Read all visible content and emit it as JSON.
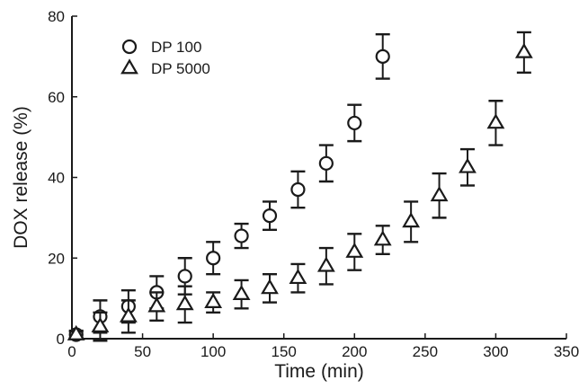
{
  "chart_data": {
    "type": "scatter",
    "title": "",
    "xlabel": "Time (min)",
    "ylabel": "DOX release (%)",
    "xlim": [
      0,
      350
    ],
    "ylim": [
      0,
      80
    ],
    "xticks": [
      0,
      50,
      100,
      150,
      200,
      250,
      300,
      350
    ],
    "yticks": [
      0,
      20,
      40,
      60,
      80
    ],
    "grid": false,
    "legend_position": "top-left",
    "series": [
      {
        "name": "DP 100",
        "marker": "circle",
        "color": "#1a1a1a",
        "x": [
          3,
          20,
          40,
          60,
          80,
          100,
          120,
          140,
          160,
          180,
          200,
          220
        ],
        "y": [
          1.0,
          5.5,
          8.0,
          11.5,
          15.5,
          20.0,
          25.5,
          30.5,
          37.0,
          43.5,
          53.5,
          70.0
        ],
        "err": [
          1.0,
          4.0,
          4.0,
          4.0,
          4.5,
          4.0,
          3.0,
          3.5,
          4.5,
          4.5,
          4.5,
          5.5
        ]
      },
      {
        "name": "DP 5000",
        "marker": "triangle",
        "color": "#1a1a1a",
        "x": [
          3,
          20,
          40,
          60,
          80,
          100,
          120,
          140,
          160,
          180,
          200,
          220,
          240,
          260,
          280,
          300,
          320
        ],
        "y": [
          1.0,
          3.0,
          5.5,
          8.0,
          8.5,
          9.0,
          11.0,
          12.5,
          15.0,
          18.0,
          21.5,
          24.5,
          29.0,
          35.5,
          42.5,
          53.5,
          71.0
        ],
        "err": [
          0.8,
          3.5,
          4.0,
          3.5,
          4.5,
          2.5,
          3.5,
          3.5,
          3.5,
          4.5,
          4.5,
          3.5,
          5.0,
          5.5,
          4.5,
          5.5,
          5.0
        ]
      }
    ]
  }
}
